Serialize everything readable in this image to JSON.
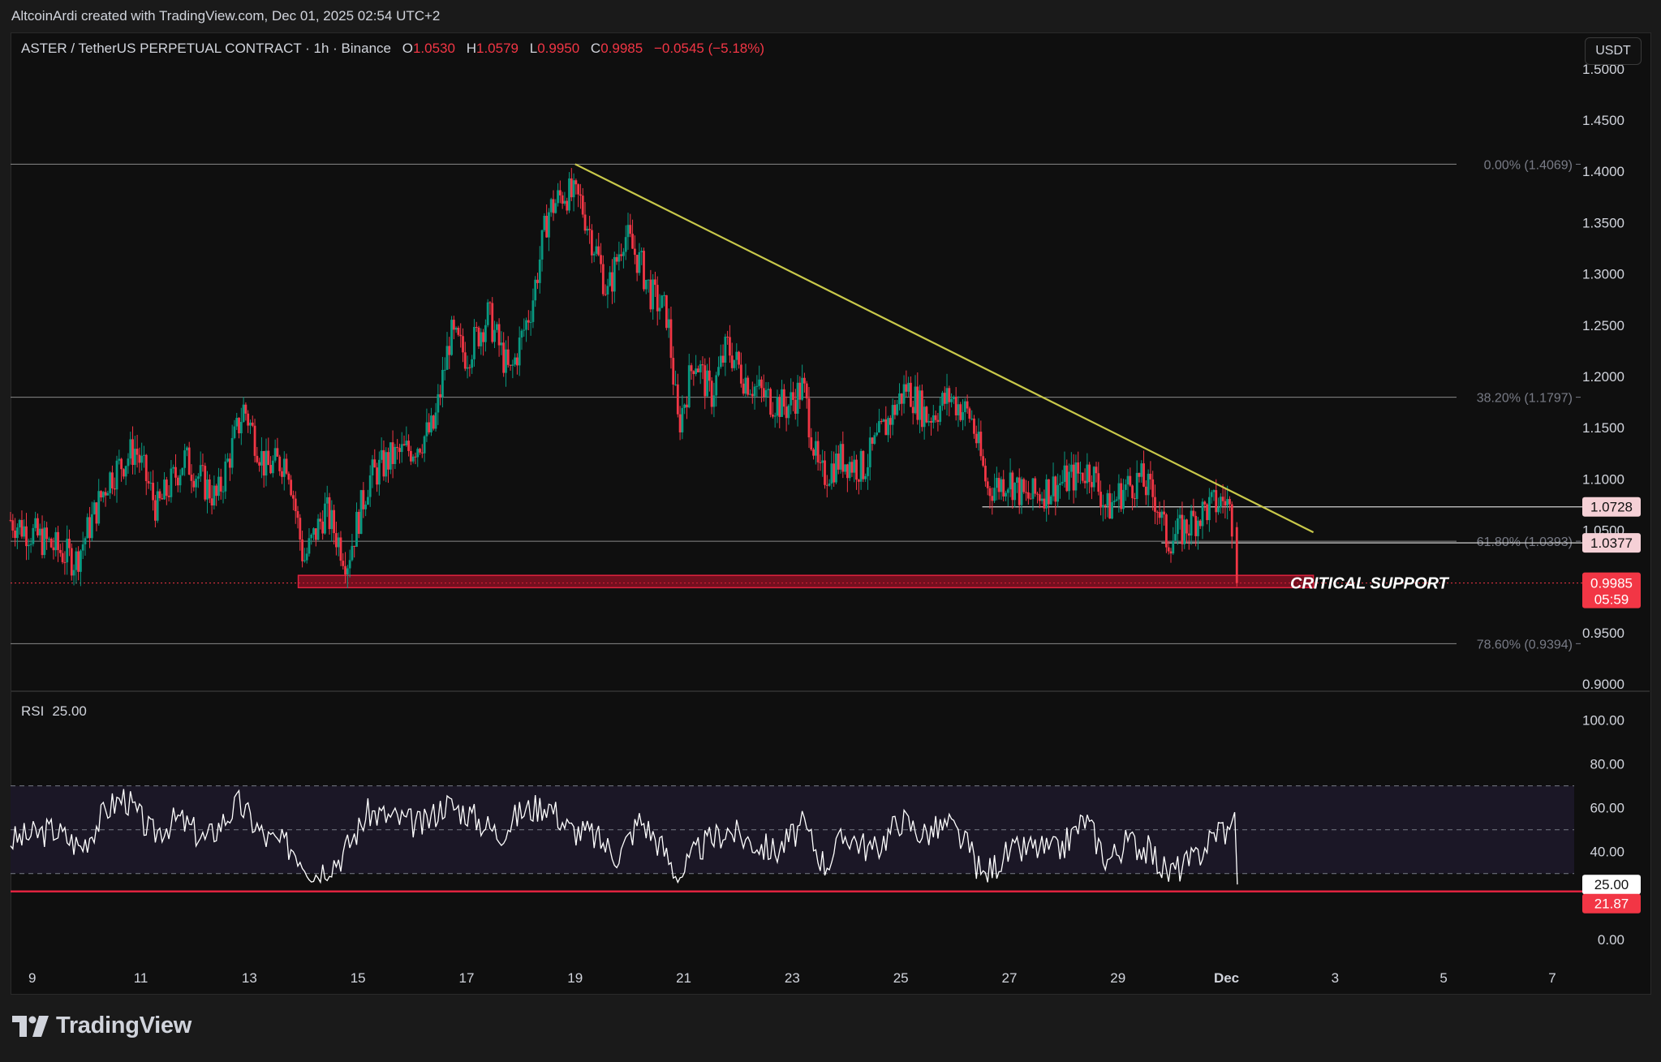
{
  "header": {
    "caption": "AltcoinArdi created with TradingView.com, Dec 01, 2025 02:54 UTC+2"
  },
  "legend": {
    "symbol": "ASTER / TetherUS PERPETUAL CONTRACT · 1h · Binance",
    "open_label": "O",
    "open": "1.0530",
    "high_label": "H",
    "high": "1.0579",
    "low_label": "L",
    "low": "0.9950",
    "close_label": "C",
    "close": "0.9985",
    "change": "−0.0545 (−5.18%)"
  },
  "currency_button": "USDT",
  "rsi_legend": {
    "name": "RSI",
    "value": "25.00"
  },
  "brand": "TradingView",
  "colors": {
    "up": "#089981",
    "down": "#f23645",
    "trendline": "#c9c94a",
    "support": "#c8102e",
    "rsi_line": "#ffffff",
    "rsi_band": "#1b1726"
  },
  "chart_data": {
    "type": "candlestick",
    "symbol": "ASTERUSDT.P",
    "interval": "1h",
    "price_ticks": [
      "1.5000",
      "1.4500",
      "1.4000",
      "1.3500",
      "1.3000",
      "1.2500",
      "1.2000",
      "1.1500",
      "1.1000",
      "1.0500",
      "0.9500",
      "0.9000"
    ],
    "price_range": [
      0.893,
      1.518
    ],
    "x_ticks": [
      "9",
      "11",
      "13",
      "15",
      "17",
      "19",
      "21",
      "23",
      "25",
      "27",
      "29",
      "Dec",
      "3",
      "5",
      "7"
    ],
    "x_tick_days": [
      9,
      11,
      13,
      15,
      17,
      19,
      21,
      23,
      25,
      27,
      29,
      31,
      33,
      35,
      37
    ],
    "x_day_range": [
      8.6,
      38.6
    ],
    "fib_levels": [
      {
        "label": "0.00% (1.4069)",
        "price": 1.4069
      },
      {
        "label": "38.20% (1.1797)",
        "price": 1.1797
      },
      {
        "label": "61.80% (1.0393)",
        "price": 1.0393
      },
      {
        "label": "78.60% (0.9394)",
        "price": 0.9394
      }
    ],
    "horizontal_lines": [
      {
        "price": 1.0728,
        "label": "1.0728",
        "from_day": 26.5,
        "to_day": 38.6
      },
      {
        "price": 1.0377,
        "label": "1.0377",
        "from_day": 29.8,
        "to_day": 38.6
      }
    ],
    "last_price": {
      "price": 0.9985,
      "label": "0.9985",
      "countdown": "05:59"
    },
    "trendline": {
      "from": {
        "day": 19.0,
        "price": 1.407
      },
      "to": {
        "day": 32.6,
        "price": 1.048
      }
    },
    "support_zone": {
      "label": "CRITICAL SUPPORT",
      "from_day": 13.9,
      "to_day": 32.6,
      "top": 1.006,
      "bottom": 0.994
    },
    "close_path": [
      [
        8.6,
        1.06
      ],
      [
        9.2,
        1.04
      ],
      [
        9.8,
        1.02
      ],
      [
        10.4,
        1.1
      ],
      [
        10.9,
        1.13
      ],
      [
        11.3,
        1.07
      ],
      [
        11.8,
        1.12
      ],
      [
        12.4,
        1.08
      ],
      [
        12.9,
        1.17
      ],
      [
        13.3,
        1.11
      ],
      [
        13.7,
        1.12
      ],
      [
        14.0,
        1.02
      ],
      [
        14.4,
        1.07
      ],
      [
        14.8,
        1.02
      ],
      [
        15.2,
        1.1
      ],
      [
        15.6,
        1.12
      ],
      [
        16.0,
        1.13
      ],
      [
        16.4,
        1.15
      ],
      [
        16.7,
        1.24
      ],
      [
        17.0,
        1.22
      ],
      [
        17.4,
        1.26
      ],
      [
        17.8,
        1.2
      ],
      [
        18.2,
        1.27
      ],
      [
        18.5,
        1.36
      ],
      [
        18.8,
        1.38
      ],
      [
        19.1,
        1.37
      ],
      [
        19.4,
        1.32
      ],
      [
        19.6,
        1.28
      ],
      [
        19.9,
        1.34
      ],
      [
        20.2,
        1.31
      ],
      [
        20.4,
        1.28
      ],
      [
        20.7,
        1.26
      ],
      [
        20.9,
        1.15
      ],
      [
        21.2,
        1.22
      ],
      [
        21.5,
        1.18
      ],
      [
        21.8,
        1.23
      ],
      [
        22.1,
        1.2
      ],
      [
        22.5,
        1.18
      ],
      [
        22.9,
        1.17
      ],
      [
        23.2,
        1.19
      ],
      [
        23.5,
        1.1
      ],
      [
        23.9,
        1.12
      ],
      [
        24.3,
        1.11
      ],
      [
        24.7,
        1.15
      ],
      [
        25.1,
        1.19
      ],
      [
        25.5,
        1.16
      ],
      [
        25.9,
        1.18
      ],
      [
        26.3,
        1.16
      ],
      [
        26.6,
        1.09
      ],
      [
        27.0,
        1.1
      ],
      [
        27.3,
        1.08
      ],
      [
        27.7,
        1.09
      ],
      [
        28.1,
        1.1
      ],
      [
        28.5,
        1.11
      ],
      [
        28.8,
        1.07
      ],
      [
        29.1,
        1.09
      ],
      [
        29.4,
        1.1
      ],
      [
        29.7,
        1.08
      ],
      [
        29.9,
        1.04
      ],
      [
        30.2,
        1.05
      ],
      [
        30.6,
        1.07
      ],
      [
        31.0,
        1.08
      ],
      [
        31.1,
        1.06
      ],
      [
        31.2,
        0.9985
      ]
    ],
    "rsi": {
      "ticks": [
        "100.00",
        "80.00",
        "60.00",
        "40.00",
        "0.00"
      ],
      "range": [
        -6,
        108
      ],
      "bands": [
        70,
        50,
        30
      ],
      "value": 25.0,
      "value_label": "25.00",
      "level_line": 21.87,
      "level_label": "21.87",
      "path": [
        [
          8.6,
          45
        ],
        [
          9.4,
          50
        ],
        [
          9.9,
          42
        ],
        [
          10.4,
          60
        ],
        [
          10.7,
          65
        ],
        [
          11.2,
          48
        ],
        [
          11.7,
          55
        ],
        [
          12.2,
          45
        ],
        [
          12.8,
          62
        ],
        [
          13.3,
          46
        ],
        [
          13.8,
          42
        ],
        [
          14.2,
          30
        ],
        [
          14.7,
          38
        ],
        [
          15.2,
          58
        ],
        [
          15.7,
          55
        ],
        [
          16.2,
          52
        ],
        [
          16.6,
          62
        ],
        [
          17.0,
          58
        ],
        [
          17.6,
          48
        ],
        [
          18.0,
          58
        ],
        [
          18.5,
          62
        ],
        [
          18.9,
          50
        ],
        [
          19.3,
          48
        ],
        [
          19.8,
          38
        ],
        [
          20.2,
          55
        ],
        [
          20.6,
          42
        ],
        [
          20.9,
          28
        ],
        [
          21.3,
          42
        ],
        [
          21.8,
          50
        ],
        [
          22.2,
          45
        ],
        [
          22.7,
          40
        ],
        [
          23.2,
          52
        ],
        [
          23.6,
          34
        ],
        [
          24.0,
          48
        ],
        [
          24.5,
          40
        ],
        [
          25.0,
          55
        ],
        [
          25.4,
          48
        ],
        [
          25.9,
          52
        ],
        [
          26.3,
          40
        ],
        [
          26.5,
          28
        ],
        [
          26.9,
          38
        ],
        [
          27.4,
          42
        ],
        [
          27.9,
          40
        ],
        [
          28.4,
          55
        ],
        [
          28.8,
          36
        ],
        [
          29.2,
          45
        ],
        [
          29.6,
          40
        ],
        [
          29.9,
          30
        ],
        [
          30.4,
          36
        ],
        [
          30.9,
          52
        ],
        [
          31.1,
          46
        ],
        [
          31.2,
          25
        ]
      ]
    }
  }
}
